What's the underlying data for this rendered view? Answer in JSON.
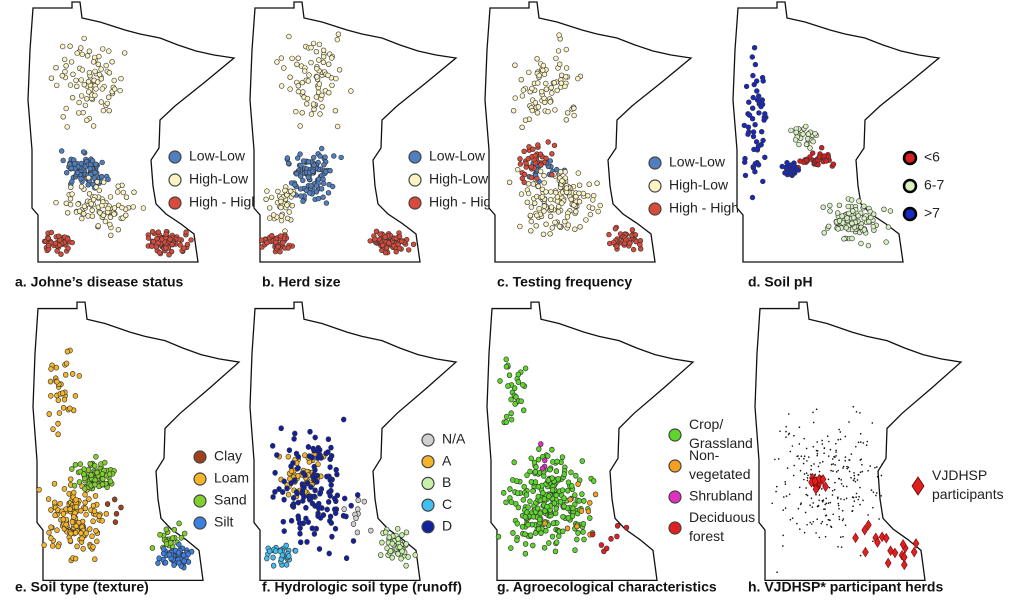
{
  "panels": [
    {
      "caption": "a. Johne’s disease status",
      "legend": [
        {
          "label": [
            "Low-Low"
          ],
          "color": "#4f7fbf"
        },
        {
          "label": [
            "High-Low"
          ],
          "color": "#fbf3c2"
        },
        {
          "label": [
            "High - High"
          ],
          "color": "#d84a3a"
        }
      ]
    },
    {
      "caption": "b. Herd size",
      "legend": [
        {
          "label": [
            "Low-Low"
          ],
          "color": "#4f7fbf"
        },
        {
          "label": [
            "High-Low"
          ],
          "color": "#fbf3c2"
        },
        {
          "label": [
            "High - High"
          ],
          "color": "#d84a3a"
        }
      ]
    },
    {
      "caption": "c. Testing frequency",
      "legend": [
        {
          "label": [
            "Low-Low"
          ],
          "color": "#4f7fbf"
        },
        {
          "label": [
            "High-Low"
          ],
          "color": "#fbf3c2"
        },
        {
          "label": [
            "High - High"
          ],
          "color": "#d84a3a"
        }
      ]
    },
    {
      "caption": "d. Soil pH",
      "legend": [
        {
          "label": [
            "<6"
          ],
          "color": "#d42020"
        },
        {
          "label": [
            "6-7"
          ],
          "color": "#d8f0c0"
        },
        {
          "label": [
            ">7"
          ],
          "color": "#1828c0"
        }
      ]
    },
    {
      "caption": "e. Soil type (texture)",
      "legend": [
        {
          "label": [
            "Clay"
          ],
          "color": "#a0401a"
        },
        {
          "label": [
            "Loam"
          ],
          "color": "#f5b52a"
        },
        {
          "label": [
            "Sand"
          ],
          "color": "#7fd02a"
        },
        {
          "label": [
            "Silt"
          ],
          "color": "#3c7fe0"
        }
      ]
    },
    {
      "caption": "f. Hydrologic soil type (runoff)",
      "legend": [
        {
          "label": [
            "N/A"
          ],
          "color": "#d0d0d0"
        },
        {
          "label": [
            "A"
          ],
          "color": "#f5b52a"
        },
        {
          "label": [
            "B"
          ],
          "color": "#c8f0a8"
        },
        {
          "label": [
            "C"
          ],
          "color": "#40c0f0"
        },
        {
          "label": [
            "D"
          ],
          "color": "#1020a0"
        }
      ]
    },
    {
      "caption": "g. Agroecological characteristics",
      "legend": [
        {
          "label": [
            "Crop/",
            "Grassland"
          ],
          "color": "#5cd62a"
        },
        {
          "label": [
            "Non-",
            "vegetated"
          ],
          "color": "#f5a020"
        },
        {
          "label": [
            "Shrubland"
          ],
          "color": "#e030c0"
        },
        {
          "label": [
            "Deciduous",
            "forest"
          ],
          "color": "#e02020"
        }
      ]
    },
    {
      "caption": "h. VJDHSP* participant herds",
      "legend": [
        {
          "label": [
            "VJDHSP",
            "participants"
          ],
          "color": "#e02020"
        }
      ]
    }
  ]
}
